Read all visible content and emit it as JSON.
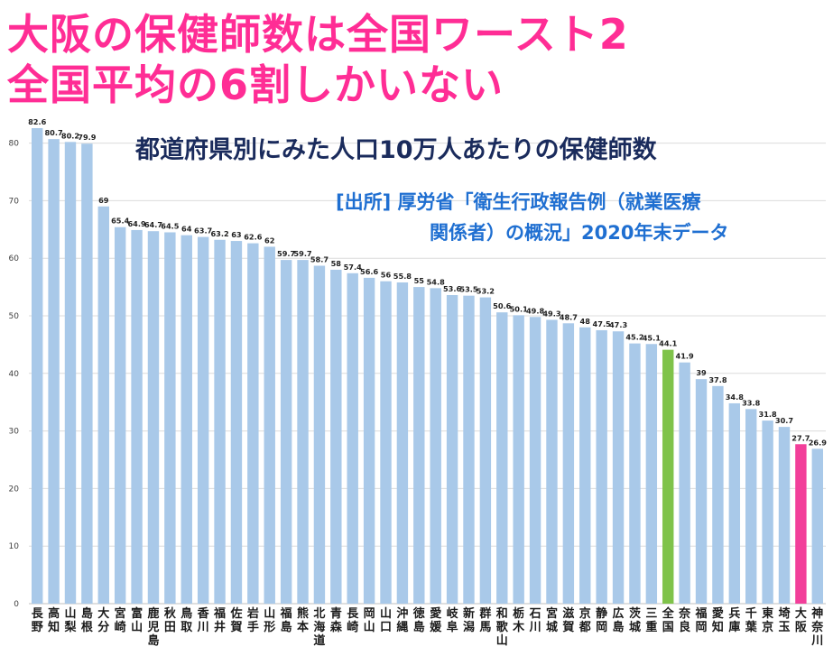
{
  "headline": {
    "line1": "大阪の保健師数は全国ワースト2",
    "line2": "全国平均の6割しかいない"
  },
  "subtitle": "都道府県別にみた人口10万人あたりの保健師数",
  "source": {
    "line1": "[出所] 厚労省「衛生行政報告例（就業医療",
    "line2": "関係者）の概況」2020年末データ"
  },
  "colors": {
    "bar": "#a9c9e9",
    "national": "#7fc34a",
    "osaka": "#f23f9a",
    "headline": "#ff2d95"
  },
  "chart_data": {
    "type": "bar",
    "title": "都道府県別にみた人口10万人あたりの保健師数",
    "xlabel": "",
    "ylabel": "",
    "ylim": [
      0,
      82.6
    ],
    "yticks": [
      0,
      10,
      20,
      30,
      40,
      50,
      60,
      70,
      80
    ],
    "categories": [
      "長野",
      "高知",
      "山梨",
      "島根",
      "大分",
      "宮崎",
      "富山",
      "鹿児島",
      "秋田",
      "鳥取",
      "香川",
      "福井",
      "佐賀",
      "岩手",
      "山形",
      "福島",
      "熊本",
      "北海道",
      "青森",
      "長崎",
      "岡山",
      "山口",
      "沖縄",
      "徳島",
      "愛媛",
      "岐阜",
      "新潟",
      "群馬",
      "和歌山",
      "栃木",
      "石川",
      "宮城",
      "滋賀",
      "京都",
      "静岡",
      "広島",
      "茨城",
      "三重",
      "全国",
      "奈良",
      "福岡",
      "愛知",
      "兵庫",
      "千葉",
      "東京",
      "埼玉",
      "大阪",
      "神奈川"
    ],
    "values": [
      82.6,
      80.7,
      80.2,
      79.9,
      69,
      65.4,
      64.9,
      64.7,
      64.5,
      64,
      63.7,
      63.2,
      63,
      62.6,
      62,
      59.7,
      59.7,
      58.7,
      58,
      57.4,
      56.6,
      56,
      55.8,
      55,
      54.8,
      53.6,
      53.5,
      53.2,
      50.6,
      50.1,
      49.8,
      49.3,
      48.7,
      48,
      47.5,
      47.3,
      45.2,
      45.1,
      44.1,
      41.9,
      39,
      37.8,
      34.8,
      33.8,
      31.8,
      30.7,
      27.7,
      26.9
    ],
    "value_labels": [
      "82.6",
      "80.7",
      "80.2",
      "79.9",
      "69",
      "65.4",
      "64.9",
      "64.7",
      "64.5",
      "64",
      "63.7",
      "63.2",
      "63",
      "62.6",
      "62",
      "59.7",
      "59.7",
      "58.7",
      "58",
      "57.4",
      "56.6",
      "56",
      "55.8",
      "55",
      "54.8",
      "53.6",
      "53.5",
      "53.2",
      "50.6",
      "50.1",
      "49.8",
      "49.3",
      "48.7",
      "48",
      "47.5",
      "47.3",
      "45.2",
      "45.1",
      "44.1",
      "41.9",
      "39",
      "37.8",
      "34.8",
      "33.8",
      "31.8",
      "30.7",
      "27.7",
      "26.9"
    ],
    "highlight": {
      "全国": "national",
      "大阪": "osaka"
    },
    "grid": true,
    "legend": "none"
  }
}
